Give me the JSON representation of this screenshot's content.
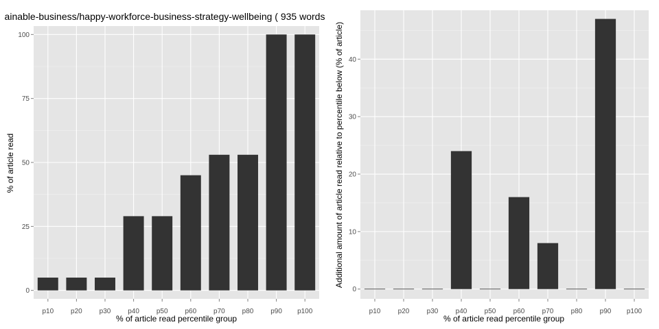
{
  "chart_data": [
    {
      "type": "bar",
      "title": "ainable-business/happy-workforce-business-strategy-wellbeing ( 935 words",
      "xlabel": "% of article read percentile group",
      "ylabel": "% of article read",
      "categories": [
        "p10",
        "p20",
        "p30",
        "p40",
        "p50",
        "p60",
        "p70",
        "p80",
        "p90",
        "p100"
      ],
      "values": [
        5,
        5,
        5,
        29,
        29,
        45,
        53,
        53,
        100,
        100
      ],
      "ylim": [
        0,
        100
      ],
      "yticks": [
        0,
        25,
        50,
        75,
        100
      ],
      "grid": true,
      "colors": {
        "bar": "#333333",
        "panel": "#e5e5e5",
        "grid": "#ffffff"
      }
    },
    {
      "type": "bar",
      "title": "",
      "xlabel": "% of article read percentile group",
      "ylabel": "Additional amount of article read relative to percentile below (% of article)",
      "categories": [
        "p10",
        "p20",
        "p30",
        "p40",
        "p50",
        "p60",
        "p70",
        "p80",
        "p90",
        "p100"
      ],
      "values": [
        0,
        0,
        0,
        24,
        0,
        16,
        8,
        0,
        47,
        0
      ],
      "ylim": [
        0,
        47
      ],
      "yticks": [
        0,
        10,
        20,
        30,
        40
      ],
      "grid": true,
      "colors": {
        "bar": "#333333",
        "panel": "#e5e5e5",
        "grid": "#ffffff"
      }
    }
  ]
}
